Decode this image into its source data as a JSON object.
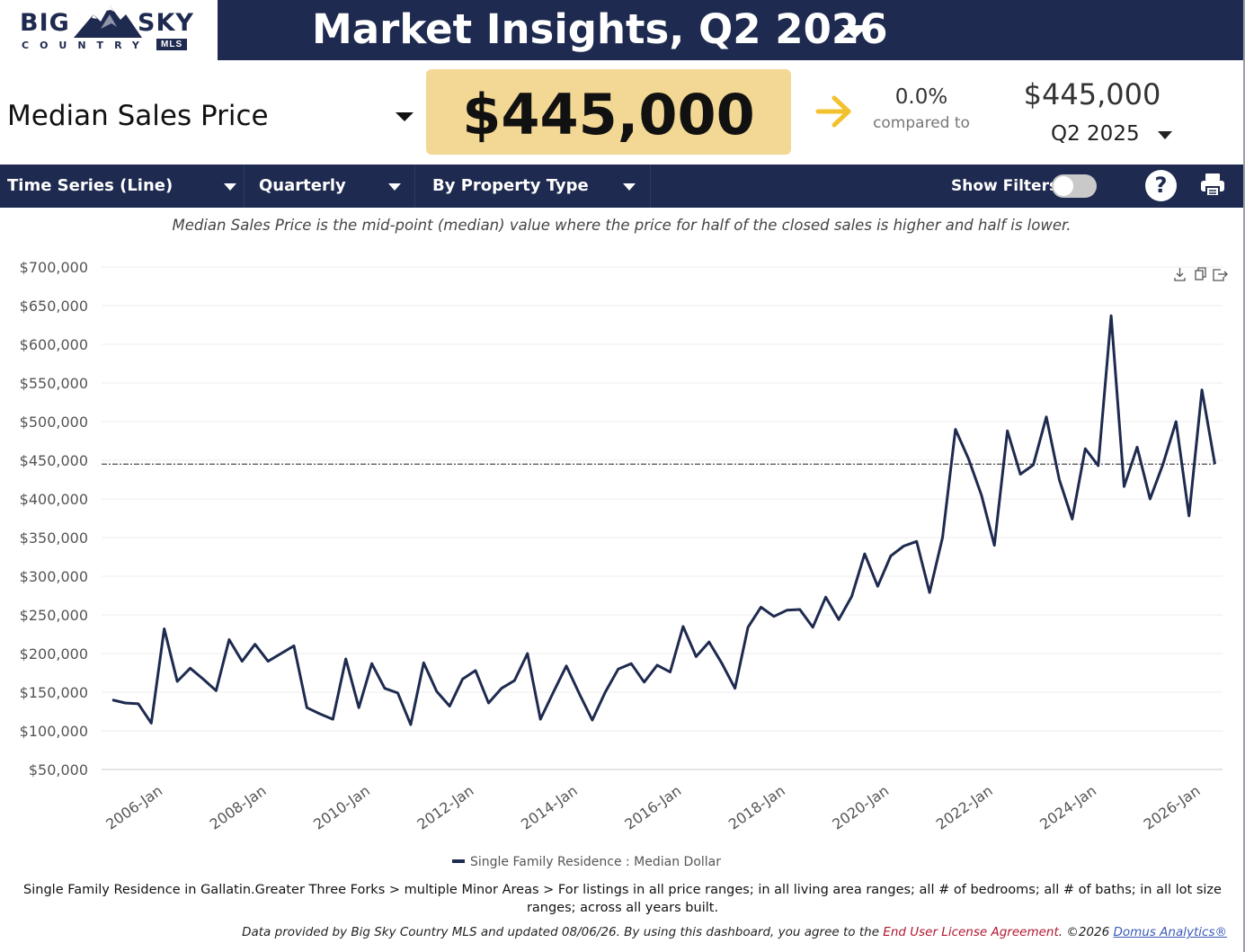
{
  "brand": {
    "word1": "BIG",
    "word2": "SKY",
    "country": "COUNTRY",
    "mls": "MLS"
  },
  "header": {
    "title": "Market Insights,  Q2 2026"
  },
  "metric": {
    "label": "Median Sales Price",
    "value": "$445,000",
    "change_pct": "0.0%",
    "compared_to_label": "compared to",
    "compare_value": "$445,000",
    "compare_period": "Q2  2025"
  },
  "toolbar": {
    "chart_type": "Time Series (Line)",
    "interval": "Quarterly",
    "grouping": "By Property Type",
    "show_filters_label": "Show Filters:",
    "show_filters_on": false,
    "help_label": "?"
  },
  "description": "Median Sales Price is the mid-point (median) value where the price for half of the closed sales is higher and half is lower.",
  "chart_data": {
    "type": "line",
    "y_tick_labels": [
      "$700,000",
      "$650,000",
      "$600,000",
      "$550,000",
      "$500,000",
      "$450,000",
      "$400,000",
      "$350,000",
      "$300,000",
      "$250,000",
      "$200,000",
      "$150,000",
      "$100,000",
      "$50,000"
    ],
    "x_tick_labels": [
      "2006-Jan",
      "2008-Jan",
      "2010-Jan",
      "2012-Jan",
      "2014-Jan",
      "2016-Jan",
      "2018-Jan",
      "2020-Jan",
      "2022-Jan",
      "2024-Jan",
      "2026-Jan"
    ],
    "ylim": [
      50000,
      700000
    ],
    "x_start": "2005-Q3",
    "x_end": "2026-Q2",
    "reference_line_value": 445000,
    "grid": true,
    "legend_position": "bottom",
    "series": [
      {
        "name": "Single Family Residence : Median Dollar",
        "color": "#1e2a4f",
        "values": [
          140000,
          136000,
          135000,
          110000,
          232000,
          164000,
          181000,
          167000,
          152000,
          218000,
          190000,
          212000,
          190000,
          200000,
          210000,
          130000,
          122000,
          115000,
          193000,
          130000,
          187000,
          155000,
          149000,
          108000,
          188000,
          151000,
          132000,
          167000,
          178000,
          136000,
          155000,
          165000,
          200000,
          115000,
          150000,
          184000,
          148000,
          114000,
          150000,
          180000,
          187000,
          163000,
          185000,
          176000,
          235000,
          196000,
          215000,
          187000,
          155000,
          234000,
          260000,
          248000,
          256000,
          257000,
          234000,
          273000,
          244000,
          274000,
          329000,
          287000,
          326000,
          339000,
          345000,
          279000,
          350000,
          490000,
          452000,
          405000,
          340000,
          488000,
          432000,
          444000,
          506000,
          425000,
          374000,
          465000,
          443000,
          637000,
          416000,
          467000,
          400000,
          445000,
          500000,
          378000,
          541000,
          445000
        ]
      }
    ]
  },
  "footnote": "Single Family Residence in Gallatin.Greater Three Forks > multiple Minor Areas > For listings in all price ranges; in all living area ranges; all # of bedrooms; all # of baths; in all lot size ranges; across all years built.",
  "credits": {
    "prefix": "Data provided by Big Sky Country MLS and updated 08/06/26.  By using this dashboard, you agree to the ",
    "eula": "End User License Agreement",
    "middle": ".  ©2026 ",
    "domus": "Domus Analytics®"
  },
  "icons": {
    "arrow": "arrow-right-icon",
    "download": "download-icon",
    "copy": "copy-icon",
    "export": "export-icon",
    "print": "printer-icon",
    "help": "help-icon"
  },
  "colors": {
    "navy": "#1e2a4f",
    "highlight": "#f2d894",
    "arrow": "#f2c12e"
  }
}
